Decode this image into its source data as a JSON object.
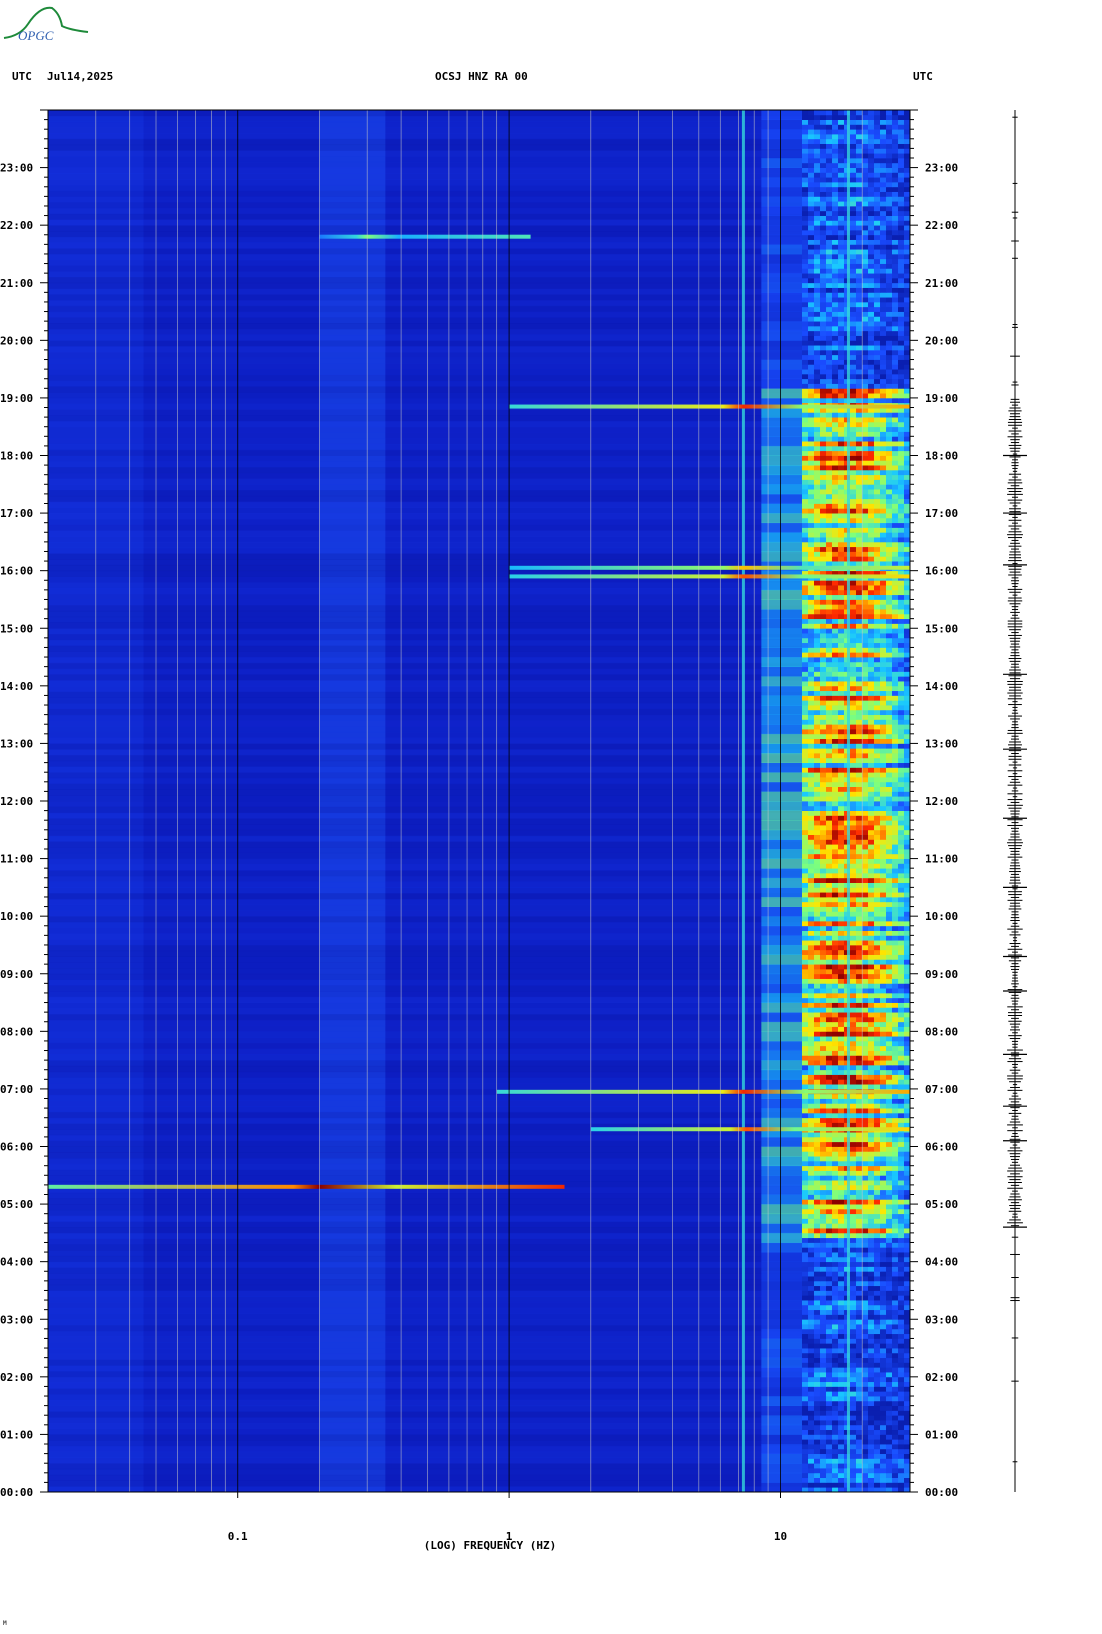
{
  "header": {
    "left_tz": "UTC",
    "date": "Jul14,2025",
    "station": "OCSJ HNZ RA 00",
    "right_tz": "UTC"
  },
  "logo": {
    "text": "OPGC",
    "colors": [
      "#1e8a3a",
      "#2f5fb0"
    ]
  },
  "footer_mark": "M",
  "chart_data": {
    "type": "heatmap",
    "title": "OCSJ HNZ RA 00",
    "xlabel": "(LOG) FREQUENCY (HZ)",
    "ylabel": "",
    "x_scale": "log",
    "xlim": [
      0.02,
      30
    ],
    "x_ticks": [
      {
        "value": 0.1,
        "label": "0.1"
      },
      {
        "value": 1,
        "label": "1"
      },
      {
        "value": 10,
        "label": "10"
      }
    ],
    "ylim_hours": [
      0,
      24
    ],
    "y_ticks": [
      {
        "hour": 0,
        "label": "00:00"
      },
      {
        "hour": 1,
        "label": "01:00"
      },
      {
        "hour": 2,
        "label": "02:00"
      },
      {
        "hour": 3,
        "label": "03:00"
      },
      {
        "hour": 4,
        "label": "04:00"
      },
      {
        "hour": 5,
        "label": "05:00"
      },
      {
        "hour": 6,
        "label": "06:00"
      },
      {
        "hour": 7,
        "label": "07:00"
      },
      {
        "hour": 8,
        "label": "08:00"
      },
      {
        "hour": 9,
        "label": "09:00"
      },
      {
        "hour": 10,
        "label": "10:00"
      },
      {
        "hour": 11,
        "label": "11:00"
      },
      {
        "hour": 12,
        "label": "12:00"
      },
      {
        "hour": 13,
        "label": "13:00"
      },
      {
        "hour": 14,
        "label": "14:00"
      },
      {
        "hour": 15,
        "label": "15:00"
      },
      {
        "hour": 16,
        "label": "16:00"
      },
      {
        "hour": 17,
        "label": "17:00"
      },
      {
        "hour": 18,
        "label": "18:00"
      },
      {
        "hour": 19,
        "label": "19:00"
      },
      {
        "hour": 20,
        "label": "20:00"
      },
      {
        "hour": 21,
        "label": "21:00"
      },
      {
        "hour": 22,
        "label": "22:00"
      },
      {
        "hour": 23,
        "label": "23:00"
      }
    ],
    "colormap": [
      "#0a1fb0",
      "#1a4cff",
      "#19c8ff",
      "#7dff7d",
      "#ffe600",
      "#ff2a00",
      "#8b0000"
    ],
    "background_color": "#0d1fc4",
    "hot_band_start_hz": 12,
    "hot_band_end_hz": 30,
    "hot_window_hours": [
      4.4,
      19.2
    ],
    "persistent_lines_hz": [
      7.3,
      17.8
    ],
    "events": [
      {
        "hour": 5.3,
        "f_min": 0.02,
        "f_max": 1.6,
        "peak_hz": 0.2,
        "intensity": 1.0
      },
      {
        "hour": 6.3,
        "f_min": 2.0,
        "f_max": 30,
        "peak_hz": 7.5,
        "intensity": 0.8
      },
      {
        "hour": 6.95,
        "f_min": 0.9,
        "f_max": 30,
        "peak_hz": 7.3,
        "intensity": 0.85
      },
      {
        "hour": 15.9,
        "f_min": 1.0,
        "f_max": 30,
        "peak_hz": 7.3,
        "intensity": 0.8
      },
      {
        "hour": 16.05,
        "f_min": 1.0,
        "f_max": 30,
        "peak_hz": 7.3,
        "intensity": 0.7
      },
      {
        "hour": 18.85,
        "f_min": 1.0,
        "f_max": 30,
        "peak_hz": 7.3,
        "intensity": 0.85
      },
      {
        "hour": 21.8,
        "f_min": 0.2,
        "f_max": 1.2,
        "peak_hz": 0.3,
        "intensity": 0.5
      }
    ],
    "trace": {
      "active_window_hours": [
        4.6,
        19.0
      ],
      "large_events_hours": [
        4.6,
        6.1,
        6.7,
        7.6,
        8.7,
        9.3,
        10.5,
        11.7,
        12.9,
        14.2,
        16.1,
        17.0,
        18.0
      ]
    }
  }
}
